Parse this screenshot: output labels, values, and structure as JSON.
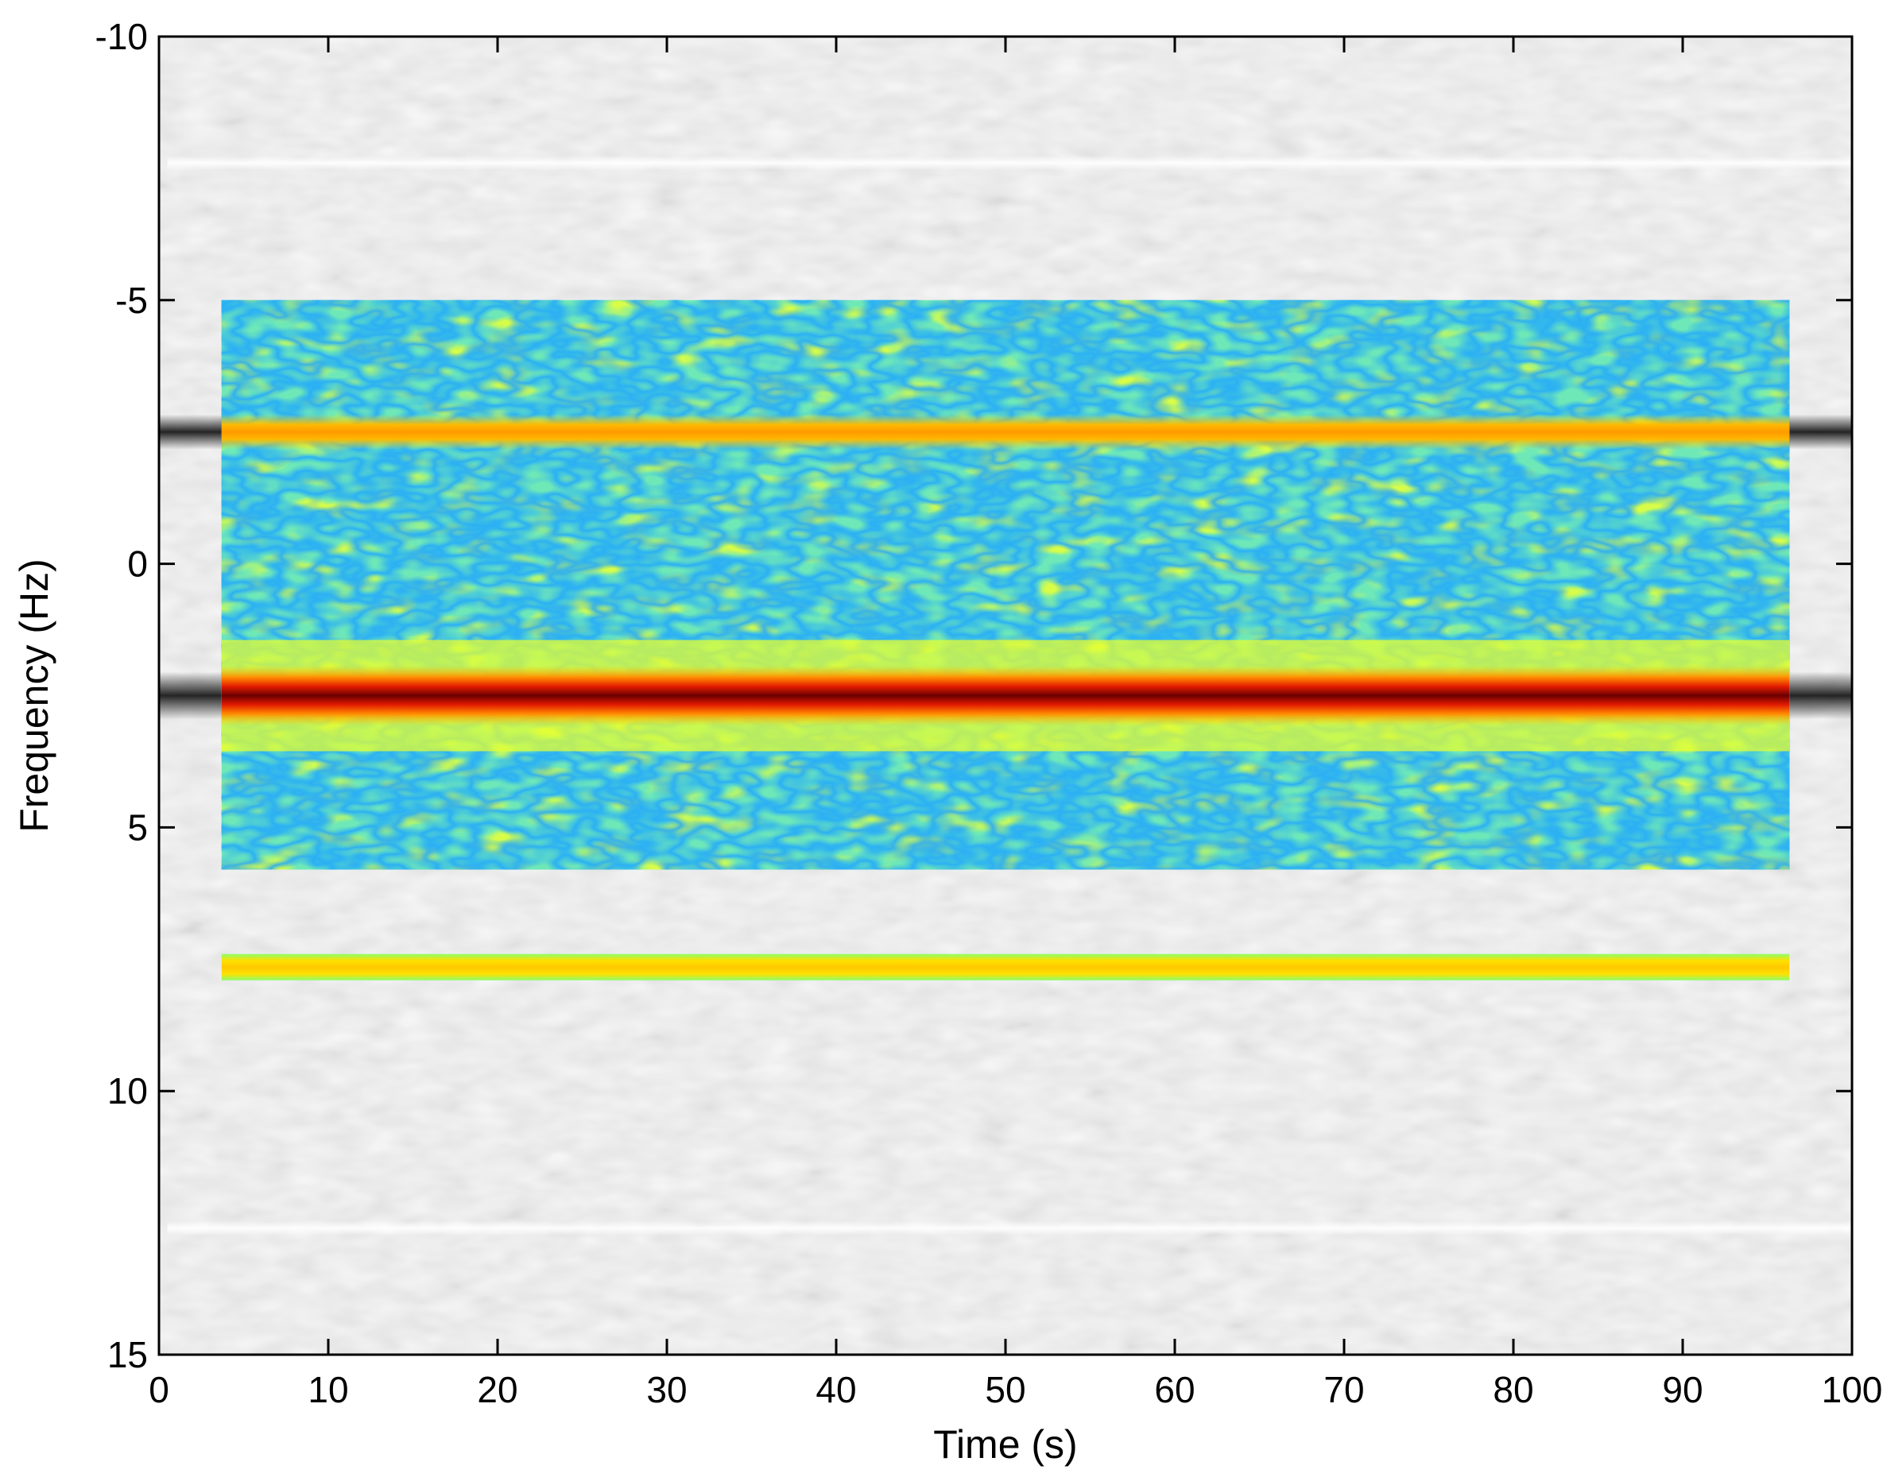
{
  "chart_data": {
    "type": "heatmap",
    "subtype": "spectrogram",
    "title": "",
    "xlabel": "Time (s)",
    "ylabel": "Frequency (Hz)",
    "xlim": [
      0,
      100
    ],
    "ylim": [
      -10,
      15
    ],
    "y_axis_direction": "reversed",
    "x_ticks": [
      "0",
      "10",
      "20",
      "30",
      "40",
      "50",
      "60",
      "70",
      "80",
      "90",
      "100"
    ],
    "y_ticks": [
      "-10",
      "-5",
      "0",
      "5",
      "10",
      "15"
    ],
    "x_tick_values": [
      0,
      10,
      20,
      30,
      40,
      50,
      60,
      70,
      80,
      90,
      100
    ],
    "y_tick_values": [
      -10,
      -5,
      0,
      5,
      10,
      15
    ],
    "grid": false,
    "legend": null,
    "colormap_background": "gray",
    "colormap_region": "jet",
    "colored_region": {
      "time_range": [
        3.7,
        96.3
      ],
      "frequency_range": [
        -5,
        5.8
      ]
    },
    "colored_strip": {
      "time_range": [
        3.7,
        96.3
      ],
      "frequency_range": [
        7.4,
        7.9
      ]
    },
    "spectral_lines": [
      {
        "frequency": -2.5,
        "time_range": [
          0,
          100
        ],
        "intensity": "high",
        "color": "#ff9a00"
      },
      {
        "frequency": 2.5,
        "time_range": [
          0,
          100
        ],
        "intensity": "highest",
        "color": "#7a0000"
      },
      {
        "frequency": 7.6,
        "time_range": [
          3.7,
          96.3
        ],
        "intensity": "medium",
        "color": "#ffe000"
      }
    ],
    "faint_lines": [
      {
        "frequency": -7.6,
        "time_range": [
          0.5,
          100
        ]
      },
      {
        "frequency": 12.6,
        "time_range": [
          0.5,
          100
        ]
      }
    ]
  },
  "colors": {
    "gray_background": "#dcdcdc",
    "jet_region_base": "#6fe8b8",
    "jet_blue": "#1ea6ff",
    "jet_yellow": "#e4ff3c",
    "strong_line_core": "#6a0000",
    "strong_line_edge": "#e21a00"
  }
}
